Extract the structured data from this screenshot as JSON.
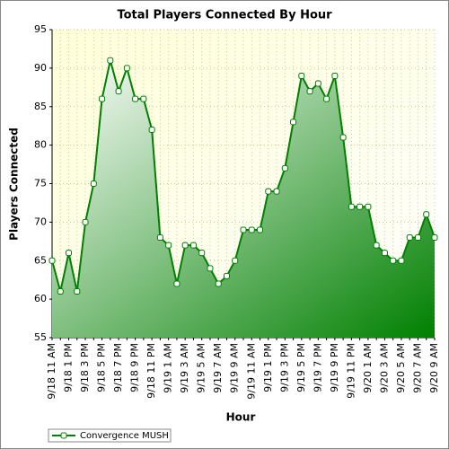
{
  "chart_data": {
    "type": "area",
    "title": "Total Players Connected By Hour",
    "x_label": "Hour",
    "y_label": "Players Connected",
    "categories": [
      "9/18 11 AM",
      null,
      "9/18 1 PM",
      null,
      "9/18 3 PM",
      null,
      "9/18 5 PM",
      null,
      "9/18 7 PM",
      null,
      "9/18 9 PM",
      null,
      "9/18 11 PM",
      null,
      "9/19 1 AM",
      null,
      "9/19 3 AM",
      null,
      "9/19 5 AM",
      null,
      "9/19 7 AM",
      null,
      "9/19 9 AM",
      null,
      "9/19 11 AM",
      null,
      "9/19 1 PM",
      null,
      "9/19 3 PM",
      null,
      "9/19 5 PM",
      null,
      "9/19 7 PM",
      null,
      "9/19 9 PM",
      null,
      "9/19 11 PM",
      null,
      "9/20 1 AM",
      null,
      "9/20 3 AM",
      null,
      "9/20 5 AM",
      null,
      "9/20 7 AM",
      null,
      "9/20 9 AM"
    ],
    "series": [
      {
        "name": "Convergence MUSH",
        "color": "#008000",
        "values": [
          65,
          61,
          66,
          61,
          70,
          75,
          86,
          91,
          87,
          90,
          86,
          86,
          82,
          68,
          67,
          62,
          67,
          67,
          66,
          64,
          62,
          63,
          65,
          69,
          69,
          69,
          74,
          74,
          77,
          83,
          89,
          87,
          88,
          86,
          89,
          81,
          72,
          72,
          72,
          67,
          66,
          65,
          65,
          68,
          68,
          71,
          68
        ]
      }
    ],
    "ylim": [
      55,
      95
    ],
    "yticks": [
      55,
      60,
      65,
      70,
      75,
      80,
      85,
      90,
      95
    ],
    "grid": true,
    "legend": "bottom-left"
  }
}
